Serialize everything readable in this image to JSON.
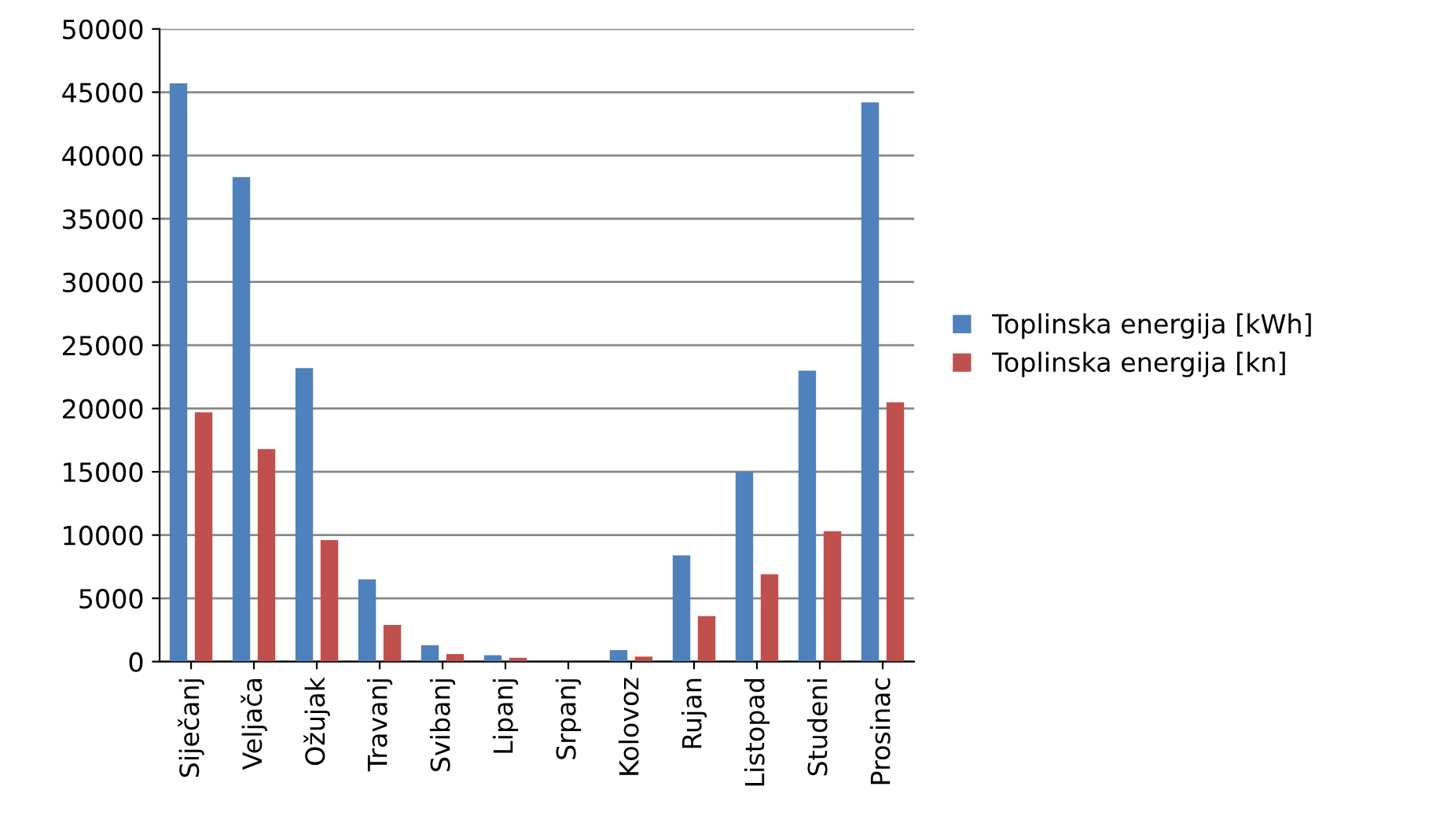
{
  "chart_data": {
    "type": "bar",
    "categories": [
      "Siječanj",
      "Veljača",
      "Ožujak",
      "Travanj",
      "Svibanj",
      "Lipanj",
      "Srpanj",
      "Kolovoz",
      "Rujan",
      "Listopad",
      "Studeni",
      "Prosinac"
    ],
    "series": [
      {
        "name": "Toplinska energija [kWh]",
        "color": "#4f81bd",
        "values": [
          45700,
          38300,
          23200,
          6500,
          1300,
          500,
          0,
          900,
          8400,
          15000,
          23000,
          44200
        ]
      },
      {
        "name": "Toplinska energija [kn]",
        "color": "#c0504d",
        "values": [
          19700,
          16800,
          9600,
          2900,
          600,
          300,
          0,
          400,
          3600,
          6900,
          10300,
          20500
        ]
      }
    ],
    "ylim": [
      0,
      50000
    ],
    "yticks": [
      0,
      5000,
      10000,
      15000,
      20000,
      25000,
      30000,
      35000,
      40000,
      45000,
      50000
    ],
    "grid": "y",
    "legend": "right"
  }
}
